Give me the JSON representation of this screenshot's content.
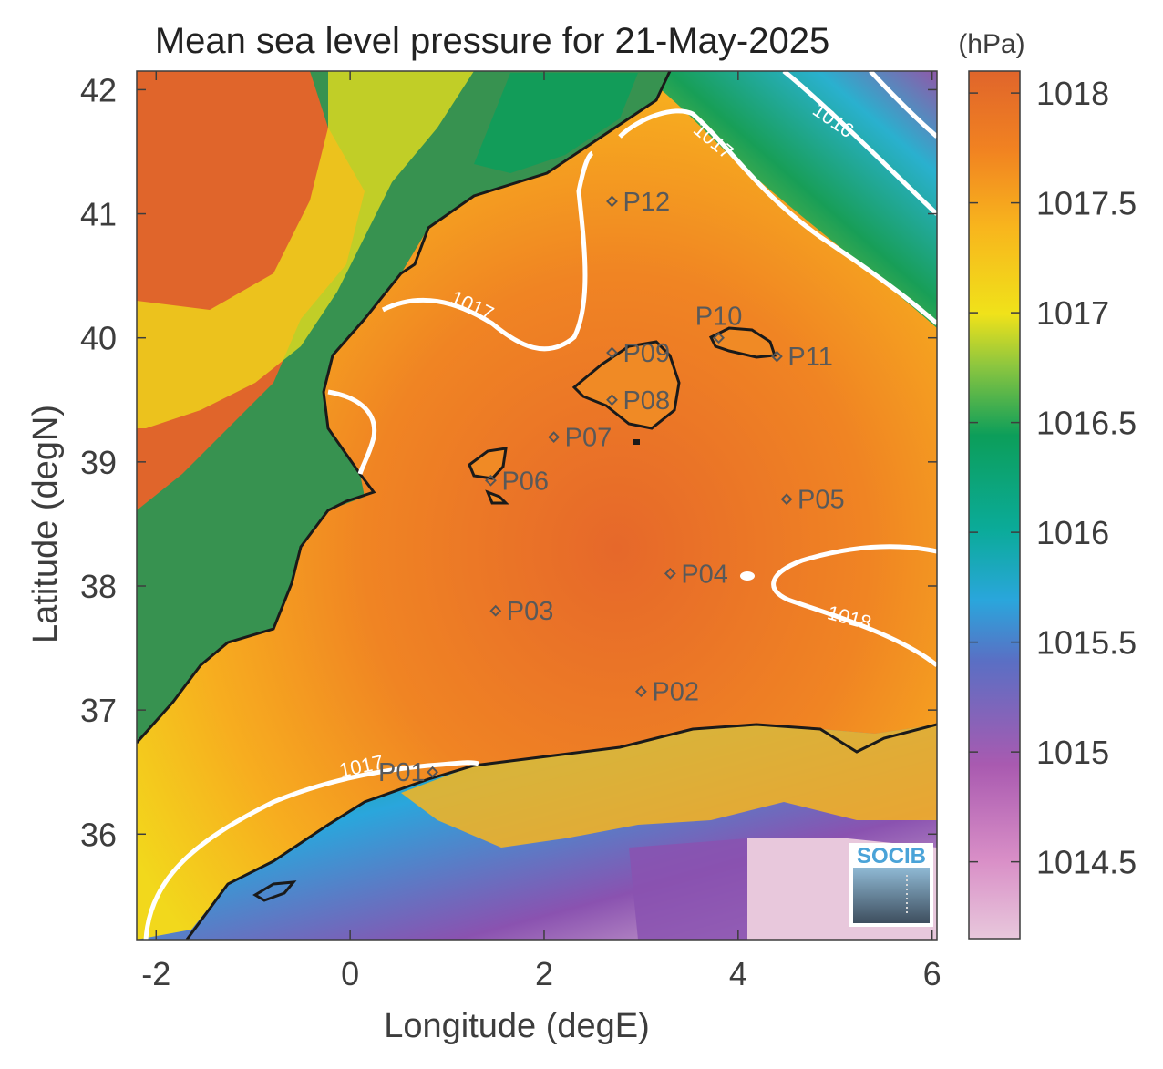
{
  "title": "Mean sea level pressure for 21-May-2025",
  "x_axis": {
    "label": "Longitude (degE)",
    "range": [
      -2.2,
      6.05
    ],
    "ticks": [
      {
        "value": -2,
        "label": "-2"
      },
      {
        "value": 0,
        "label": "0"
      },
      {
        "value": 2,
        "label": "2"
      },
      {
        "value": 4,
        "label": "4"
      },
      {
        "value": 6,
        "label": "6"
      }
    ]
  },
  "y_axis": {
    "label": "Latitude (degN)",
    "range": [
      35.15,
      42.15
    ],
    "ticks": [
      {
        "value": 36,
        "label": "36"
      },
      {
        "value": 37,
        "label": "37"
      },
      {
        "value": 38,
        "label": "38"
      },
      {
        "value": 39,
        "label": "39"
      },
      {
        "value": 40,
        "label": "40"
      },
      {
        "value": 41,
        "label": "41"
      },
      {
        "value": 42,
        "label": "42"
      }
    ]
  },
  "colorbar": {
    "unit": "(hPa)",
    "range": [
      1014.15,
      1018.1
    ],
    "ticks": [
      {
        "value": 1014.5,
        "label": "1014.5"
      },
      {
        "value": 1015,
        "label": "1015"
      },
      {
        "value": 1015.5,
        "label": "1015.5"
      },
      {
        "value": 1016,
        "label": "1016"
      },
      {
        "value": 1016.5,
        "label": "1016.5"
      },
      {
        "value": 1017,
        "label": "1017"
      },
      {
        "value": 1017.5,
        "label": "1017.5"
      },
      {
        "value": 1018,
        "label": "1018"
      }
    ],
    "colors": [
      "#e8c8dc",
      "#c863b0",
      "#8a52b0",
      "#2aa6dc",
      "#0bab9a",
      "#0c9e5a",
      "#8cc63f",
      "#f0e21a",
      "#f8b51d",
      "#f18221",
      "#e0652b"
    ]
  },
  "contours": [
    {
      "label": "1016",
      "value": 1016
    },
    {
      "label": "1017",
      "value": 1017
    },
    {
      "label": "1017",
      "value": 1017
    },
    {
      "label": "1017",
      "value": 1017
    },
    {
      "label": "1018",
      "value": 1018
    }
  ],
  "stations": [
    {
      "id": "P01",
      "lon": 0.85,
      "lat": 36.5
    },
    {
      "id": "P02",
      "lon": 3.0,
      "lat": 37.15
    },
    {
      "id": "P03",
      "lon": 1.5,
      "lat": 37.8
    },
    {
      "id": "P04",
      "lon": 3.3,
      "lat": 38.1
    },
    {
      "id": "P05",
      "lon": 4.5,
      "lat": 38.7
    },
    {
      "id": "P06",
      "lon": 1.45,
      "lat": 38.85
    },
    {
      "id": "P07",
      "lon": 2.1,
      "lat": 39.2
    },
    {
      "id": "P08",
      "lon": 2.7,
      "lat": 39.5
    },
    {
      "id": "P09",
      "lon": 2.7,
      "lat": 39.88
    },
    {
      "id": "P10",
      "lon": 3.8,
      "lat": 40.0
    },
    {
      "id": "P11",
      "lon": 4.4,
      "lat": 39.85
    },
    {
      "id": "P12",
      "lon": 2.7,
      "lat": 41.1
    }
  ],
  "logo": {
    "text": "SOCIB"
  }
}
